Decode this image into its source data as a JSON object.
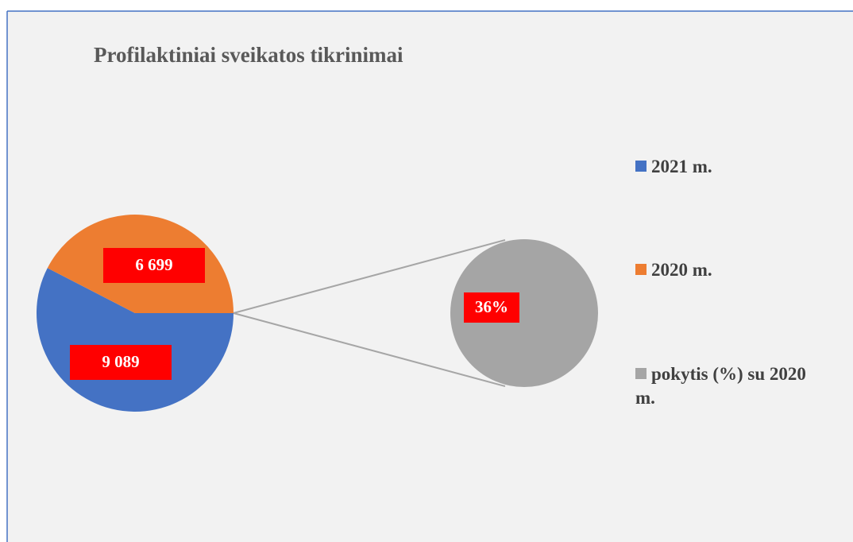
{
  "chart_data": {
    "type": "pie-of-pie",
    "title": "Profilaktiniai  sveikatos  tikrinimai",
    "categories": [
      "2021 m.",
      "2020 m.",
      "pokytis (%) su 2020 m."
    ],
    "values": [
      9089,
      6699,
      36
    ],
    "value_labels": [
      "9 089",
      "6 699",
      "36%"
    ],
    "colors": [
      "#4472c4",
      "#ed7d31",
      "#a5a5a5"
    ],
    "legend": "right"
  }
}
